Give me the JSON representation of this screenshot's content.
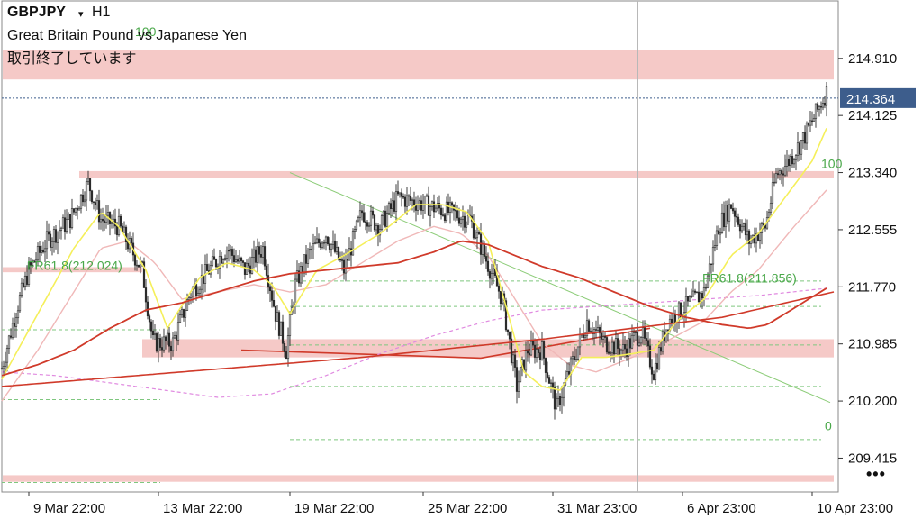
{
  "header": {
    "symbol": "GBPJPY",
    "timeframe_arrow": "▾",
    "timeframe": "H1",
    "instrument_name": "Great Britain Pound vs Japanese Yen",
    "market_status": "取引終了しています"
  },
  "menu": {
    "label": "•••",
    "icon": "more-dots-icon"
  },
  "chart_data": {
    "type": "candlestick",
    "symbol": "GBPJPY",
    "timeframe": "H1",
    "ylim": [
      208.95,
      215.7
    ],
    "y_ticks": [
      214.91,
      214.125,
      213.34,
      212.555,
      211.77,
      210.985,
      210.2,
      209.415
    ],
    "x_ticks": [
      "9 Mar 22:00",
      "13 Mar 22:00",
      "19 Mar 22:00",
      "25 Mar 22:00",
      "31 Mar 23:00",
      "6 Apr 23:00",
      "10 Apr 23:00"
    ],
    "x_tick_index": [
      15,
      87,
      160,
      234,
      306,
      378,
      450
    ],
    "bars_total": 460,
    "last_price": 214.364,
    "crosshair_index": 353,
    "colors": {
      "candle": "#2b2b2b",
      "ma_fast": "#f5ef5a",
      "ma_mid": "#f0b8b8",
      "ma_slow": "#d03a2a",
      "ma_dashed": "#e08ae0",
      "fib_line": "#7fc77f",
      "fib_text": "#4aa84a",
      "zone": "#f4c6c4",
      "trend": "#8ccc78",
      "trend_red": "#d03a2a",
      "last_price_bg": "#3d5d8c",
      "last_price_line": "#3d5d8c"
    },
    "zones": [
      {
        "y_top": 215.02,
        "y_bottom": 214.62,
        "i_start": 0,
        "i_end": 462
      },
      {
        "y_top": 213.36,
        "y_bottom": 213.27,
        "i_start": 43,
        "i_end": 462
      },
      {
        "y_top": 212.04,
        "y_bottom": 211.97,
        "i_start": 0,
        "i_end": 78
      },
      {
        "y_top": 211.05,
        "y_bottom": 210.8,
        "i_start": 78,
        "i_end": 462
      },
      {
        "y_top": 209.18,
        "y_bottom": 209.09,
        "i_start": 0,
        "i_end": 462
      }
    ],
    "fib_labels": [
      {
        "text": "100",
        "x_index": 455,
        "y": 213.4
      },
      {
        "text": "FR61.8(211.856)",
        "x_index": 389,
        "y": 211.83
      },
      {
        "text": "0",
        "x_index": 457,
        "y": 209.8
      },
      {
        "text": "FR61.8(212.024)",
        "x_index": 14,
        "y": 212.0
      },
      {
        "text": "100",
        "x_index": 74,
        "y": 215.22
      }
    ],
    "fib_levels": [
      {
        "y": 211.85,
        "i_start": 160,
        "i_end": 455
      },
      {
        "y": 211.5,
        "i_start": 160,
        "i_end": 455
      },
      {
        "y": 210.97,
        "i_start": 160,
        "i_end": 455
      },
      {
        "y": 210.4,
        "i_start": 160,
        "i_end": 455
      },
      {
        "y": 209.67,
        "i_start": 160,
        "i_end": 455
      },
      {
        "y": 211.18,
        "i_start": 0,
        "i_end": 88
      },
      {
        "y": 210.22,
        "i_start": 0,
        "i_end": 88
      },
      {
        "y": 209.08,
        "i_start": 0,
        "i_end": 88
      }
    ],
    "trendlines": [
      {
        "kind": "green",
        "from": [
          160,
          213.34
        ],
        "to": [
          460,
          210.18
        ]
      },
      {
        "kind": "red",
        "from": [
          133,
          210.9
        ],
        "to": [
          266,
          210.79
        ]
      },
      {
        "kind": "red",
        "from": [
          266,
          210.79
        ],
        "to": [
          360,
          211.2
        ]
      }
    ],
    "price_path": [
      [
        0,
        210.65
      ],
      [
        8,
        211.45
      ],
      [
        15,
        212.0
      ],
      [
        25,
        212.4
      ],
      [
        38,
        212.7
      ],
      [
        48,
        213.2
      ],
      [
        55,
        212.7
      ],
      [
        65,
        212.6
      ],
      [
        78,
        212.0
      ],
      [
        84,
        211.0
      ],
      [
        95,
        211.0
      ],
      [
        105,
        211.7
      ],
      [
        115,
        212.0
      ],
      [
        125,
        212.3
      ],
      [
        135,
        212.0
      ],
      [
        145,
        212.3
      ],
      [
        152,
        211.4
      ],
      [
        158,
        210.9
      ],
      [
        163,
        211.8
      ],
      [
        170,
        212.2
      ],
      [
        180,
        212.5
      ],
      [
        190,
        212.0
      ],
      [
        200,
        212.8
      ],
      [
        210,
        212.6
      ],
      [
        220,
        213.0
      ],
      [
        235,
        212.9
      ],
      [
        248,
        212.8
      ],
      [
        260,
        212.7
      ],
      [
        268,
        212.2
      ],
      [
        278,
        211.6
      ],
      [
        286,
        210.4
      ],
      [
        292,
        210.9
      ],
      [
        300,
        210.9
      ],
      [
        308,
        210.1
      ],
      [
        315,
        210.6
      ],
      [
        325,
        211.3
      ],
      [
        335,
        211.0
      ],
      [
        345,
        210.9
      ],
      [
        355,
        211.15
      ],
      [
        362,
        210.6
      ],
      [
        370,
        211.3
      ],
      [
        380,
        211.5
      ],
      [
        390,
        211.7
      ],
      [
        398,
        212.6
      ],
      [
        405,
        212.9
      ],
      [
        415,
        212.4
      ],
      [
        424,
        212.6
      ],
      [
        430,
        213.3
      ],
      [
        437,
        213.5
      ],
      [
        445,
        213.8
      ],
      [
        452,
        214.15
      ],
      [
        458,
        214.45
      ]
    ],
    "ma_fast_path": [
      [
        0,
        210.5
      ],
      [
        20,
        211.4
      ],
      [
        40,
        212.3
      ],
      [
        55,
        212.8
      ],
      [
        65,
        212.6
      ],
      [
        80,
        212.0
      ],
      [
        92,
        211.2
      ],
      [
        110,
        211.9
      ],
      [
        125,
        212.1
      ],
      [
        140,
        212.0
      ],
      [
        150,
        211.8
      ],
      [
        160,
        211.4
      ],
      [
        175,
        212.0
      ],
      [
        190,
        212.2
      ],
      [
        210,
        212.5
      ],
      [
        230,
        212.9
      ],
      [
        245,
        212.9
      ],
      [
        258,
        212.8
      ],
      [
        270,
        212.4
      ],
      [
        280,
        211.5
      ],
      [
        290,
        210.6
      ],
      [
        300,
        210.4
      ],
      [
        310,
        210.35
      ],
      [
        322,
        210.8
      ],
      [
        335,
        210.8
      ],
      [
        350,
        210.85
      ],
      [
        362,
        210.9
      ],
      [
        375,
        211.3
      ],
      [
        390,
        211.6
      ],
      [
        405,
        212.2
      ],
      [
        420,
        212.5
      ],
      [
        435,
        213.0
      ],
      [
        450,
        213.5
      ],
      [
        458,
        213.95
      ]
    ],
    "ma_mid_path": [
      [
        0,
        210.2
      ],
      [
        20,
        210.9
      ],
      [
        40,
        211.7
      ],
      [
        55,
        212.3
      ],
      [
        70,
        212.4
      ],
      [
        85,
        212.1
      ],
      [
        100,
        211.6
      ],
      [
        120,
        211.7
      ],
      [
        140,
        211.8
      ],
      [
        160,
        211.7
      ],
      [
        180,
        211.8
      ],
      [
        200,
        212.1
      ],
      [
        220,
        212.4
      ],
      [
        240,
        212.6
      ],
      [
        255,
        212.5
      ],
      [
        270,
        212.2
      ],
      [
        285,
        211.6
      ],
      [
        300,
        211.0
      ],
      [
        315,
        210.7
      ],
      [
        330,
        210.6
      ],
      [
        345,
        210.75
      ],
      [
        360,
        210.9
      ],
      [
        375,
        211.1
      ],
      [
        390,
        211.3
      ],
      [
        405,
        211.7
      ],
      [
        420,
        212.0
      ],
      [
        440,
        212.6
      ],
      [
        458,
        213.1
      ]
    ],
    "ma_slow_path": [
      [
        0,
        210.55
      ],
      [
        20,
        210.7
      ],
      [
        40,
        210.9
      ],
      [
        60,
        211.2
      ],
      [
        80,
        211.45
      ],
      [
        100,
        211.55
      ],
      [
        120,
        211.7
      ],
      [
        140,
        211.85
      ],
      [
        160,
        211.95
      ],
      [
        180,
        212.0
      ],
      [
        200,
        212.05
      ],
      [
        220,
        212.1
      ],
      [
        240,
        212.25
      ],
      [
        255,
        212.4
      ],
      [
        270,
        212.35
      ],
      [
        285,
        212.2
      ],
      [
        300,
        212.05
      ],
      [
        320,
        211.9
      ],
      [
        340,
        211.7
      ],
      [
        360,
        211.5
      ],
      [
        380,
        211.35
      ],
      [
        400,
        211.25
      ],
      [
        415,
        211.2
      ],
      [
        425,
        211.25
      ],
      [
        435,
        211.4
      ],
      [
        448,
        211.6
      ],
      [
        458,
        211.75
      ]
    ],
    "ma_slow2_path": [
      [
        0,
        210.4
      ],
      [
        100,
        210.6
      ],
      [
        200,
        210.8
      ],
      [
        300,
        211.05
      ],
      [
        400,
        211.35
      ],
      [
        462,
        211.7
      ]
    ],
    "ma_dashed_path": [
      [
        0,
        210.6
      ],
      [
        30,
        210.55
      ],
      [
        60,
        210.45
      ],
      [
        90,
        210.35
      ],
      [
        120,
        210.25
      ],
      [
        150,
        210.3
      ],
      [
        180,
        210.55
      ],
      [
        210,
        210.85
      ],
      [
        240,
        211.1
      ],
      [
        270,
        211.3
      ],
      [
        300,
        211.45
      ],
      [
        330,
        211.5
      ],
      [
        360,
        211.55
      ],
      [
        390,
        211.6
      ],
      [
        420,
        211.65
      ],
      [
        458,
        211.75
      ]
    ]
  }
}
